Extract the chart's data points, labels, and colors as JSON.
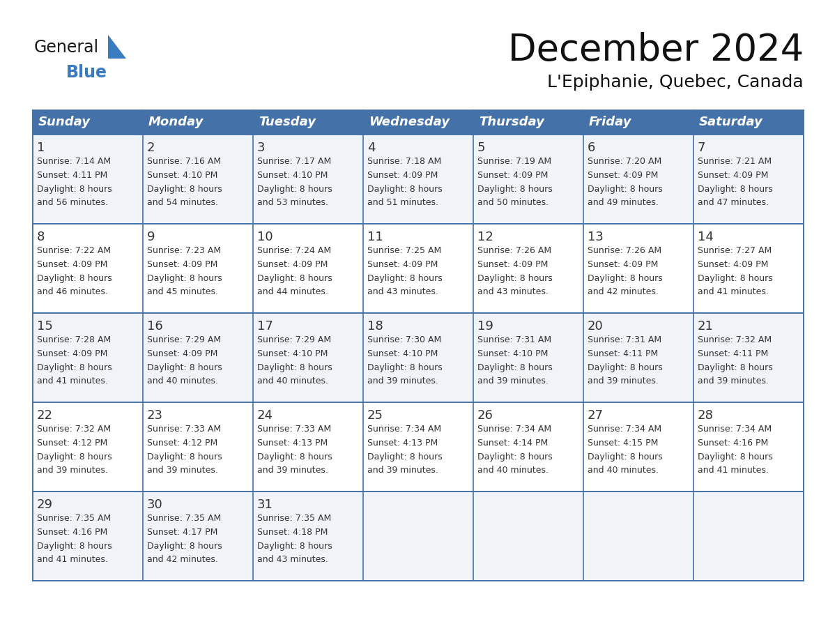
{
  "title": "December 2024",
  "subtitle": "L'Epiphanie, Quebec, Canada",
  "header_color": "#4472a8",
  "header_text_color": "#ffffff",
  "border_color": "#4472a8",
  "row_colors": [
    "#f0f4f8",
    "#ffffff",
    "#f0f4f8",
    "#ffffff",
    "#f0f4f8"
  ],
  "text_color": "#333333",
  "day_headers": [
    "Sunday",
    "Monday",
    "Tuesday",
    "Wednesday",
    "Thursday",
    "Friday",
    "Saturday"
  ],
  "days": [
    {
      "day": 1,
      "col": 0,
      "row": 0,
      "sunrise": "7:14 AM",
      "sunset": "4:11 PM",
      "daylight": "8 hours and 56 minutes."
    },
    {
      "day": 2,
      "col": 1,
      "row": 0,
      "sunrise": "7:16 AM",
      "sunset": "4:10 PM",
      "daylight": "8 hours and 54 minutes."
    },
    {
      "day": 3,
      "col": 2,
      "row": 0,
      "sunrise": "7:17 AM",
      "sunset": "4:10 PM",
      "daylight": "8 hours and 53 minutes."
    },
    {
      "day": 4,
      "col": 3,
      "row": 0,
      "sunrise": "7:18 AM",
      "sunset": "4:09 PM",
      "daylight": "8 hours and 51 minutes."
    },
    {
      "day": 5,
      "col": 4,
      "row": 0,
      "sunrise": "7:19 AM",
      "sunset": "4:09 PM",
      "daylight": "8 hours and 50 minutes."
    },
    {
      "day": 6,
      "col": 5,
      "row": 0,
      "sunrise": "7:20 AM",
      "sunset": "4:09 PM",
      "daylight": "8 hours and 49 minutes."
    },
    {
      "day": 7,
      "col": 6,
      "row": 0,
      "sunrise": "7:21 AM",
      "sunset": "4:09 PM",
      "daylight": "8 hours and 47 minutes."
    },
    {
      "day": 8,
      "col": 0,
      "row": 1,
      "sunrise": "7:22 AM",
      "sunset": "4:09 PM",
      "daylight": "8 hours and 46 minutes."
    },
    {
      "day": 9,
      "col": 1,
      "row": 1,
      "sunrise": "7:23 AM",
      "sunset": "4:09 PM",
      "daylight": "8 hours and 45 minutes."
    },
    {
      "day": 10,
      "col": 2,
      "row": 1,
      "sunrise": "7:24 AM",
      "sunset": "4:09 PM",
      "daylight": "8 hours and 44 minutes."
    },
    {
      "day": 11,
      "col": 3,
      "row": 1,
      "sunrise": "7:25 AM",
      "sunset": "4:09 PM",
      "daylight": "8 hours and 43 minutes."
    },
    {
      "day": 12,
      "col": 4,
      "row": 1,
      "sunrise": "7:26 AM",
      "sunset": "4:09 PM",
      "daylight": "8 hours and 43 minutes."
    },
    {
      "day": 13,
      "col": 5,
      "row": 1,
      "sunrise": "7:26 AM",
      "sunset": "4:09 PM",
      "daylight": "8 hours and 42 minutes."
    },
    {
      "day": 14,
      "col": 6,
      "row": 1,
      "sunrise": "7:27 AM",
      "sunset": "4:09 PM",
      "daylight": "8 hours and 41 minutes."
    },
    {
      "day": 15,
      "col": 0,
      "row": 2,
      "sunrise": "7:28 AM",
      "sunset": "4:09 PM",
      "daylight": "8 hours and 41 minutes."
    },
    {
      "day": 16,
      "col": 1,
      "row": 2,
      "sunrise": "7:29 AM",
      "sunset": "4:09 PM",
      "daylight": "8 hours and 40 minutes."
    },
    {
      "day": 17,
      "col": 2,
      "row": 2,
      "sunrise": "7:29 AM",
      "sunset": "4:10 PM",
      "daylight": "8 hours and 40 minutes."
    },
    {
      "day": 18,
      "col": 3,
      "row": 2,
      "sunrise": "7:30 AM",
      "sunset": "4:10 PM",
      "daylight": "8 hours and 39 minutes."
    },
    {
      "day": 19,
      "col": 4,
      "row": 2,
      "sunrise": "7:31 AM",
      "sunset": "4:10 PM",
      "daylight": "8 hours and 39 minutes."
    },
    {
      "day": 20,
      "col": 5,
      "row": 2,
      "sunrise": "7:31 AM",
      "sunset": "4:11 PM",
      "daylight": "8 hours and 39 minutes."
    },
    {
      "day": 21,
      "col": 6,
      "row": 2,
      "sunrise": "7:32 AM",
      "sunset": "4:11 PM",
      "daylight": "8 hours and 39 minutes."
    },
    {
      "day": 22,
      "col": 0,
      "row": 3,
      "sunrise": "7:32 AM",
      "sunset": "4:12 PM",
      "daylight": "8 hours and 39 minutes."
    },
    {
      "day": 23,
      "col": 1,
      "row": 3,
      "sunrise": "7:33 AM",
      "sunset": "4:12 PM",
      "daylight": "8 hours and 39 minutes."
    },
    {
      "day": 24,
      "col": 2,
      "row": 3,
      "sunrise": "7:33 AM",
      "sunset": "4:13 PM",
      "daylight": "8 hours and 39 minutes."
    },
    {
      "day": 25,
      "col": 3,
      "row": 3,
      "sunrise": "7:34 AM",
      "sunset": "4:13 PM",
      "daylight": "8 hours and 39 minutes."
    },
    {
      "day": 26,
      "col": 4,
      "row": 3,
      "sunrise": "7:34 AM",
      "sunset": "4:14 PM",
      "daylight": "8 hours and 40 minutes."
    },
    {
      "day": 27,
      "col": 5,
      "row": 3,
      "sunrise": "7:34 AM",
      "sunset": "4:15 PM",
      "daylight": "8 hours and 40 minutes."
    },
    {
      "day": 28,
      "col": 6,
      "row": 3,
      "sunrise": "7:34 AM",
      "sunset": "4:16 PM",
      "daylight": "8 hours and 41 minutes."
    },
    {
      "day": 29,
      "col": 0,
      "row": 4,
      "sunrise": "7:35 AM",
      "sunset": "4:16 PM",
      "daylight": "8 hours and 41 minutes."
    },
    {
      "day": 30,
      "col": 1,
      "row": 4,
      "sunrise": "7:35 AM",
      "sunset": "4:17 PM",
      "daylight": "8 hours and 42 minutes."
    },
    {
      "day": 31,
      "col": 2,
      "row": 4,
      "sunrise": "7:35 AM",
      "sunset": "4:18 PM",
      "daylight": "8 hours and 43 minutes."
    }
  ],
  "num_rows": 5,
  "logo_text_general": "General",
  "logo_text_blue": "Blue",
  "logo_color_general": "#1a1a1a",
  "logo_color_blue": "#3a7abf",
  "logo_triangle_color": "#3a7abf",
  "title_fontsize": 38,
  "subtitle_fontsize": 18,
  "header_fontsize": 13,
  "day_num_fontsize": 13,
  "cell_text_fontsize": 9
}
